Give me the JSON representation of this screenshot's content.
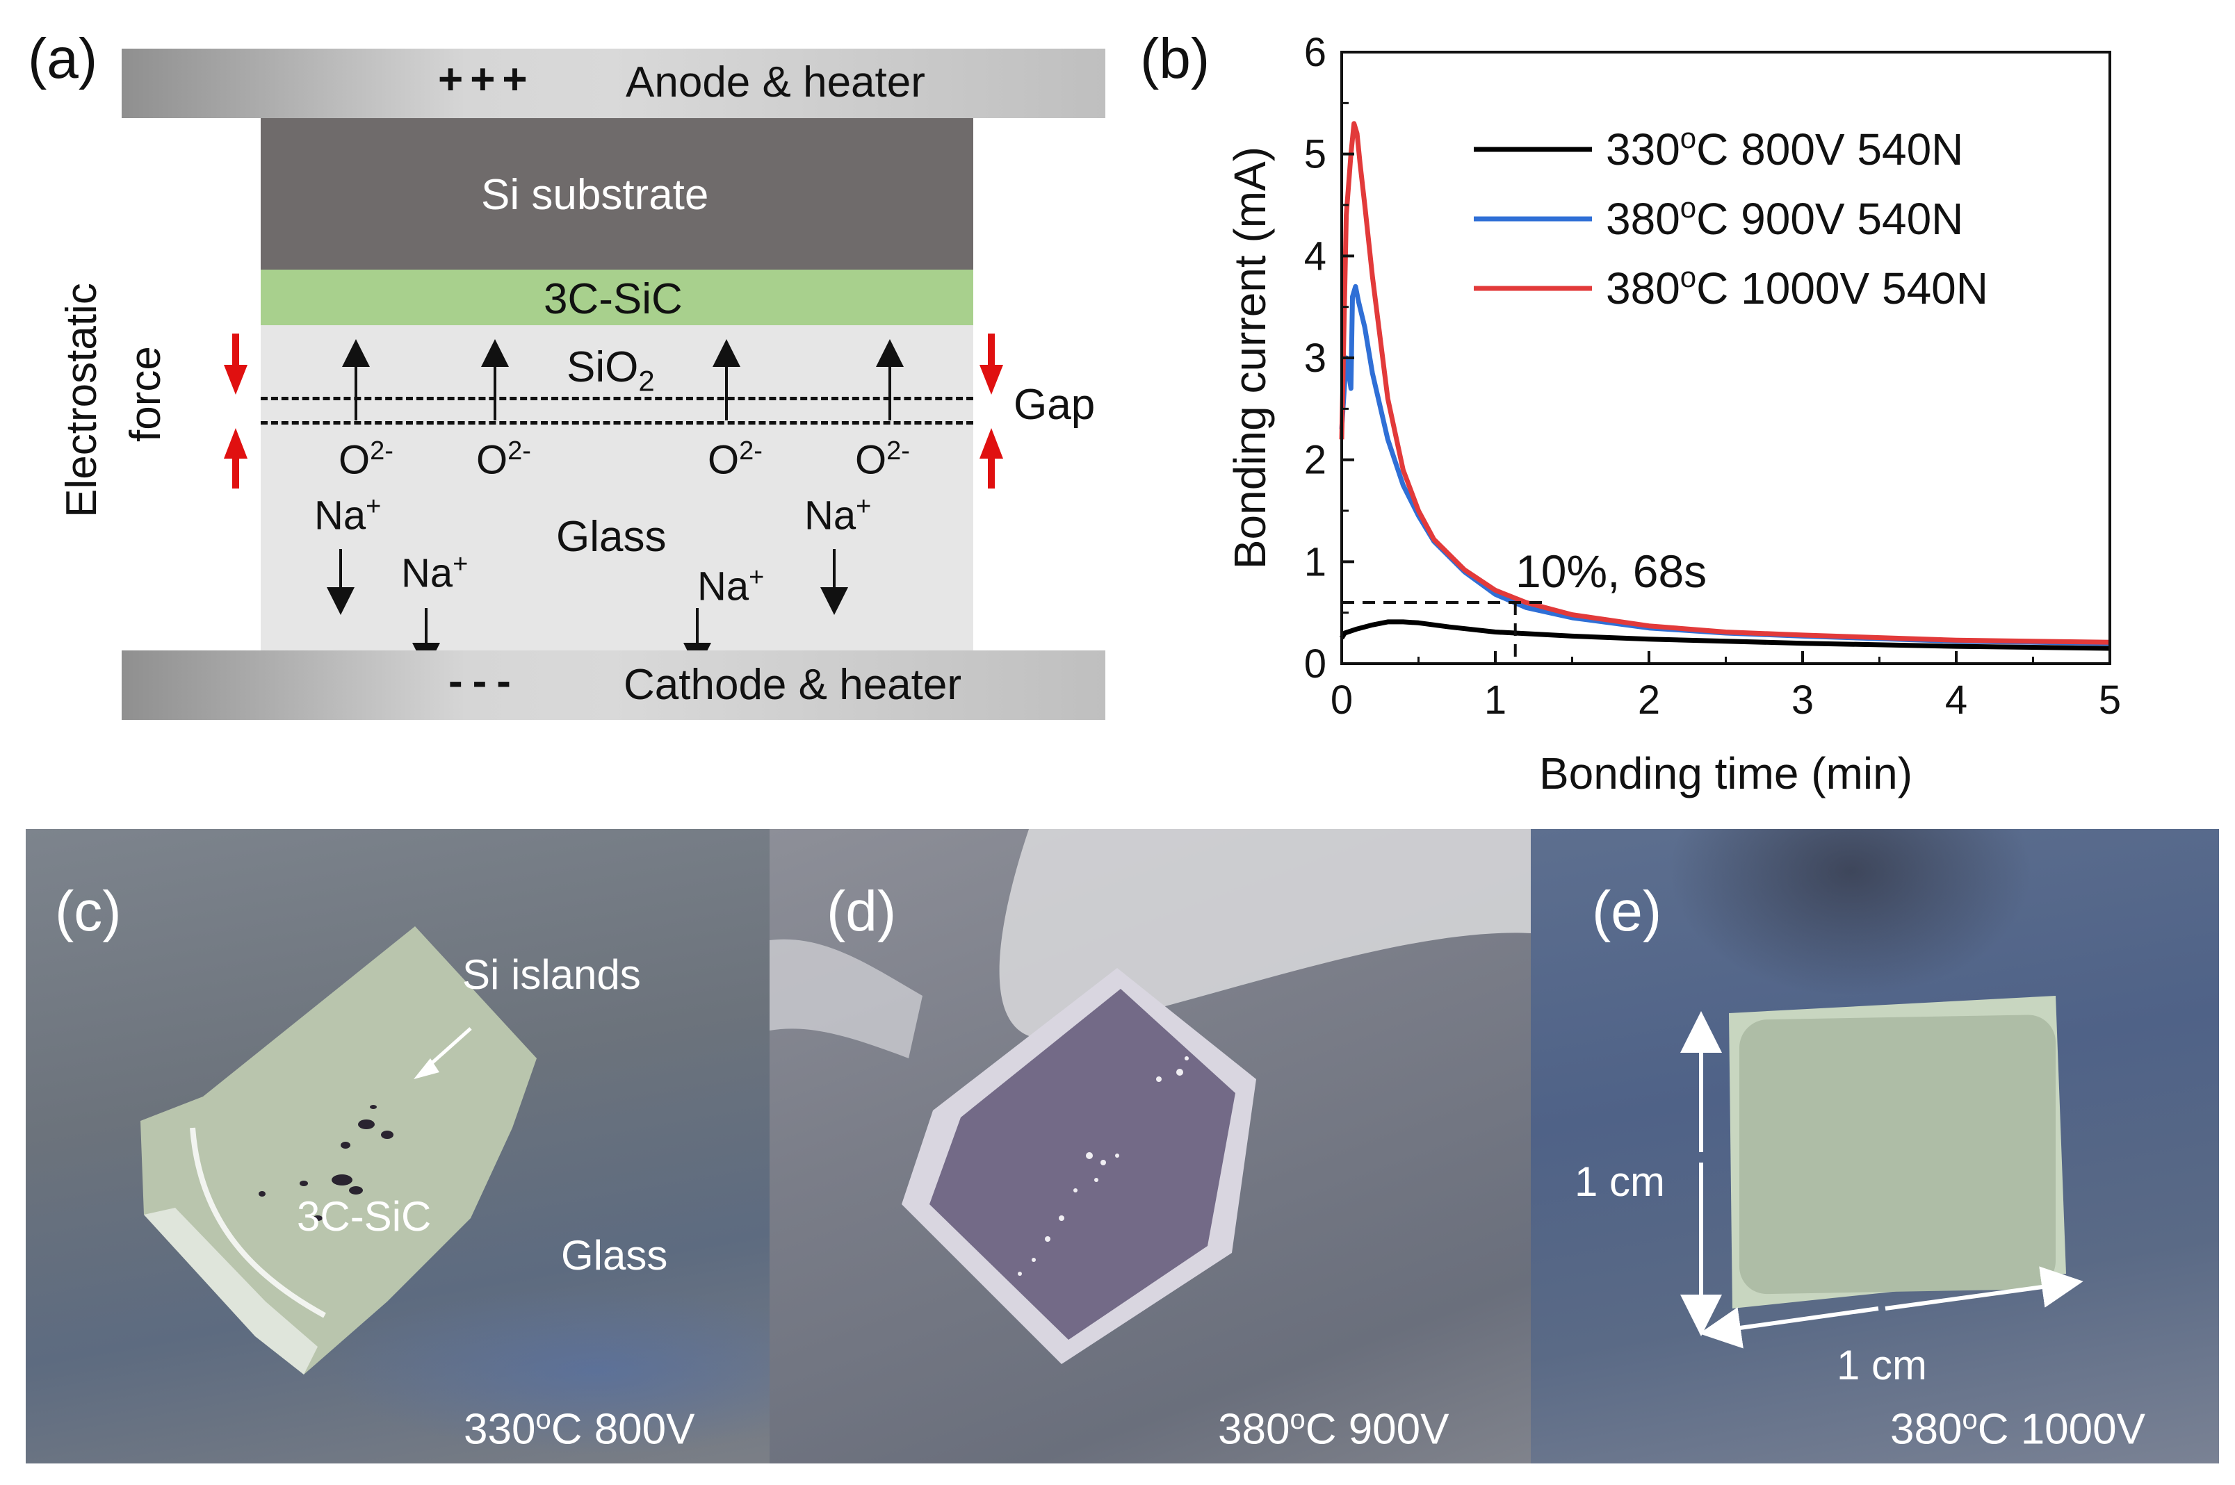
{
  "panel_a": {
    "letter": "(a)",
    "anode_signs": "+++",
    "anode_label": "Anode & heater",
    "si_label": "Si substrate",
    "sic_label": "3C-SiC",
    "sio2_main": "SiO",
    "sio2_sub": "2",
    "gap_label": "Gap",
    "glass_label": "Glass",
    "cathode_signs": "---",
    "cathode_label": "Cathode & heater",
    "force_line1": "Electrostatic",
    "force_line2": "force",
    "oxygen_main": "O",
    "oxygen_sup": "2-",
    "sodium_main": "Na",
    "sodium_sup": "+"
  },
  "panel_b": {
    "letter": "(b)",
    "annotation": "10%, 68s"
  },
  "chart_data": {
    "type": "line",
    "xlabel": "Bonding time (min)",
    "ylabel": "Bonding current (mA)",
    "xlim": [
      0,
      5
    ],
    "ylim": [
      0,
      6
    ],
    "xticks": [
      0,
      1,
      2,
      3,
      4,
      5
    ],
    "yticks": [
      0,
      1,
      2,
      3,
      4,
      5,
      6
    ],
    "grid": false,
    "legend_position": "top-right",
    "series": [
      {
        "name_main": "330",
        "name_sup": "o",
        "name_rest": "C 800V 540N",
        "color": "#000000",
        "x": [
          0,
          0.02,
          0.1,
          0.2,
          0.3,
          0.4,
          0.5,
          0.7,
          1.0,
          1.5,
          2.0,
          3.0,
          4.0,
          5.0
        ],
        "y": [
          0.25,
          0.3,
          0.34,
          0.38,
          0.41,
          0.41,
          0.4,
          0.36,
          0.31,
          0.27,
          0.24,
          0.2,
          0.17,
          0.15
        ]
      },
      {
        "name_main": "380",
        "name_sup": "o",
        "name_rest": "C 900V 540N",
        "color": "#2f6fd6",
        "x": [
          0,
          0.03,
          0.06,
          0.07,
          0.09,
          0.11,
          0.15,
          0.2,
          0.3,
          0.4,
          0.5,
          0.6,
          0.8,
          1.0,
          1.2,
          1.5,
          2.0,
          2.5,
          3.0,
          4.0,
          5.0
        ],
        "y": [
          2.3,
          3.0,
          2.7,
          3.6,
          3.7,
          3.55,
          3.3,
          2.85,
          2.2,
          1.75,
          1.45,
          1.2,
          0.9,
          0.68,
          0.55,
          0.45,
          0.35,
          0.3,
          0.27,
          0.22,
          0.2
        ]
      },
      {
        "name_main": "380",
        "name_sup": "o",
        "name_rest": "C 1000V 540N",
        "color": "#e23a3a",
        "x": [
          0,
          0.03,
          0.06,
          0.08,
          0.1,
          0.12,
          0.15,
          0.2,
          0.3,
          0.4,
          0.5,
          0.6,
          0.8,
          1.0,
          1.2,
          1.5,
          2.0,
          2.5,
          3.0,
          4.0,
          5.0
        ],
        "y": [
          2.2,
          4.4,
          5.0,
          5.3,
          5.2,
          4.9,
          4.5,
          3.8,
          2.6,
          1.9,
          1.5,
          1.22,
          0.92,
          0.72,
          0.6,
          0.48,
          0.37,
          0.31,
          0.28,
          0.23,
          0.21
        ]
      }
    ],
    "guide": {
      "y_level": 0.6,
      "x_level": 1.13
    }
  },
  "panel_c": {
    "letter": "(c)",
    "caption_main": "330",
    "caption_sup": "o",
    "caption_rest": "C 800V",
    "si_islands": "Si islands",
    "sic": "3C-SiC",
    "glass": "Glass"
  },
  "panel_d": {
    "letter": "(d)",
    "caption_main": "380",
    "caption_sup": "o",
    "caption_rest": "C 900V"
  },
  "panel_e": {
    "letter": "(e)",
    "caption_main": "380",
    "caption_sup": "o",
    "caption_rest": "C 1000V",
    "dim_vertical": "1 cm",
    "dim_horizontal": "1 cm"
  }
}
